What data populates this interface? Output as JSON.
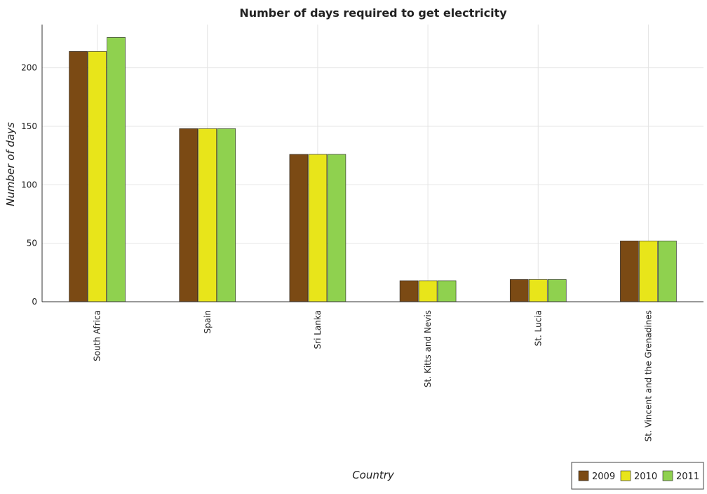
{
  "chart_data": {
    "type": "bar",
    "title": "Number of days required to get electricity",
    "xlabel": "Country",
    "ylabel": "Number of days",
    "categories": [
      "South Africa",
      "Spain",
      "Sri Lanka",
      "St. Kitts and Nevis",
      "St. Lucia",
      "St. Vincent and the Grenadines"
    ],
    "series": [
      {
        "name": "2009",
        "color": "#7b4a14",
        "values": [
          214,
          148,
          126,
          18,
          19,
          52
        ]
      },
      {
        "name": "2010",
        "color": "#e8e51a",
        "values": [
          214,
          148,
          126,
          18,
          19,
          52
        ]
      },
      {
        "name": "2011",
        "color": "#8fd14f",
        "values": [
          226,
          148,
          126,
          18,
          19,
          52
        ]
      }
    ],
    "ylim": [
      0,
      237
    ],
    "yticks": [
      0,
      50,
      100,
      150,
      200
    ],
    "grid": true,
    "legend_position": "bottom-right"
  }
}
